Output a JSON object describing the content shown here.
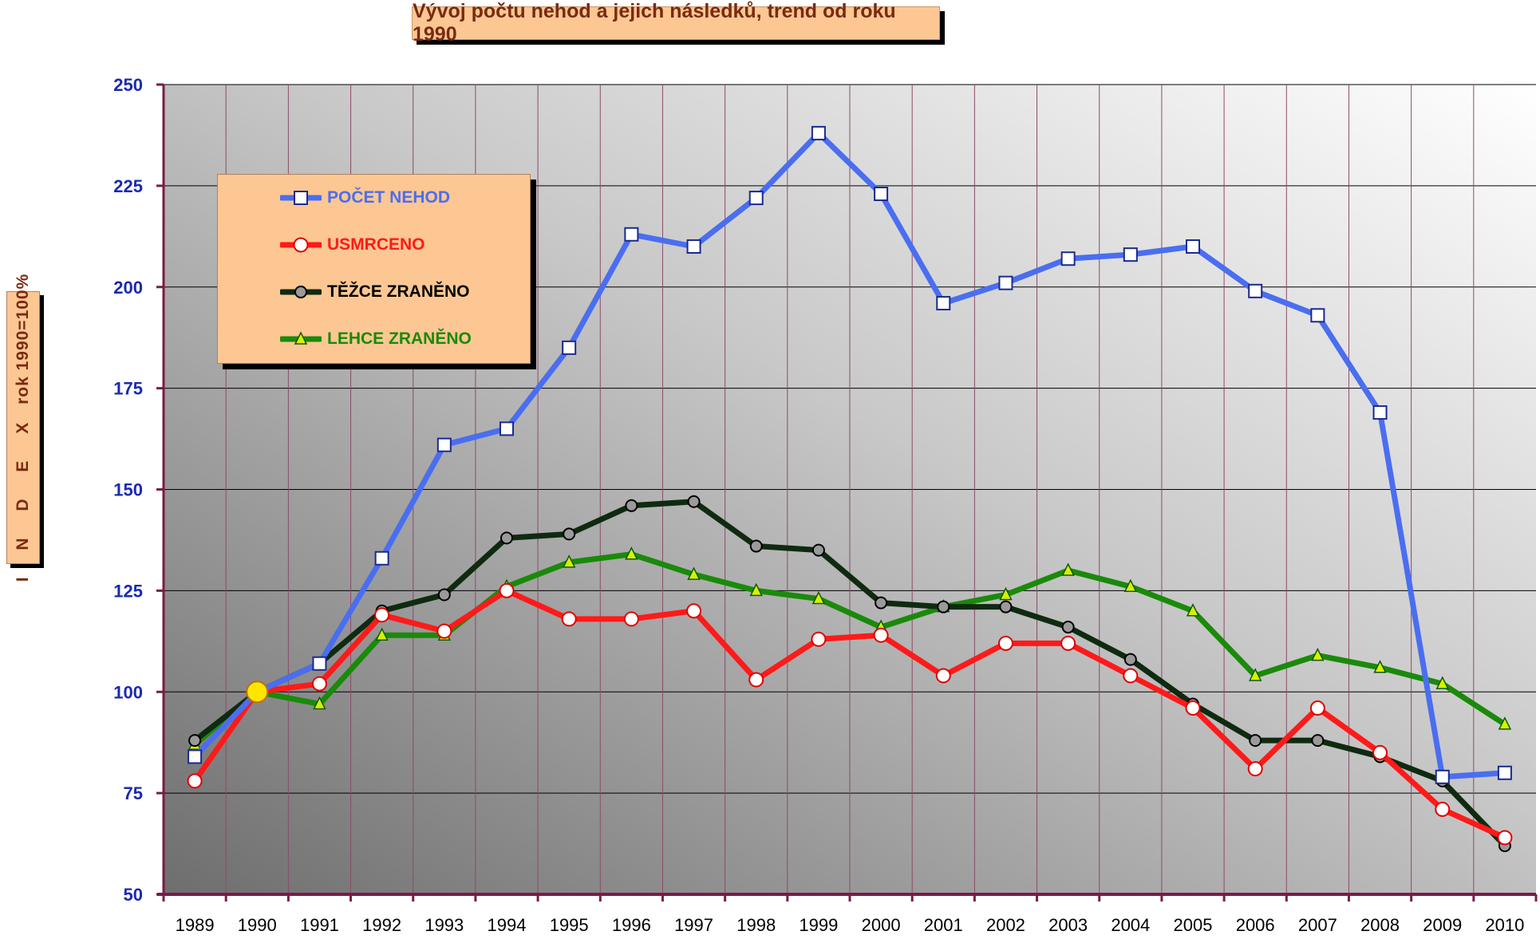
{
  "chart_data": {
    "type": "line",
    "title": "Vývoj počtu nehod a jejich následků, trend od roku 1990",
    "ylabel_main": "I N D E X",
    "ylabel_sub": "rok 1990=100%",
    "xlabel": "",
    "ylim": [
      50,
      250
    ],
    "yticks": [
      50,
      75,
      100,
      125,
      150,
      175,
      200,
      225,
      250
    ],
    "grid": true,
    "legend_position": "top-left",
    "categories": [
      "1989",
      "1990",
      "1991",
      "1992",
      "1993",
      "1994",
      "1995",
      "1996",
      "1997",
      "1998",
      "1999",
      "2000",
      "2001",
      "2002",
      "2003",
      "2004",
      "2005",
      "2006",
      "2007",
      "2008",
      "2009",
      "2010"
    ],
    "highlight_point": {
      "x": "1990",
      "y": 100,
      "color": "#ffe600"
    },
    "series": [
      {
        "name": "POČET NEHOD",
        "color": "#4a6ef0",
        "label_color": "#4a6ef0",
        "marker": "square",
        "values": [
          84,
          100,
          107,
          133,
          161,
          165,
          185,
          213,
          210,
          222,
          238,
          223,
          196,
          201,
          207,
          208,
          210,
          199,
          193,
          169,
          79,
          80
        ]
      },
      {
        "name": "USMRCENO",
        "color": "#ff1a1a",
        "label_color": "#ff1a1a",
        "marker": "circle",
        "values": [
          78,
          100,
          102,
          119,
          115,
          125,
          118,
          118,
          120,
          103,
          113,
          114,
          104,
          112,
          112,
          104,
          96,
          81,
          96,
          85,
          71,
          64
        ]
      },
      {
        "name": "TĚŽCE ZRANĚNO",
        "color": "#0f2a10",
        "label_color": "#000000",
        "marker": "dot",
        "values": [
          88,
          100,
          107,
          120,
          124,
          138,
          139,
          146,
          147,
          136,
          135,
          122,
          121,
          121,
          116,
          108,
          97,
          88,
          88,
          84,
          78,
          62
        ]
      },
      {
        "name": "LEHCE ZRANĚNO",
        "color": "#1a8a0a",
        "label_color": "#1a8a0a",
        "marker": "triangle",
        "values": [
          87,
          100,
          97,
          114,
          114,
          126,
          132,
          134,
          129,
          125,
          123,
          116,
          121,
          124,
          130,
          126,
          120,
          104,
          109,
          106,
          102,
          92
        ]
      }
    ]
  }
}
